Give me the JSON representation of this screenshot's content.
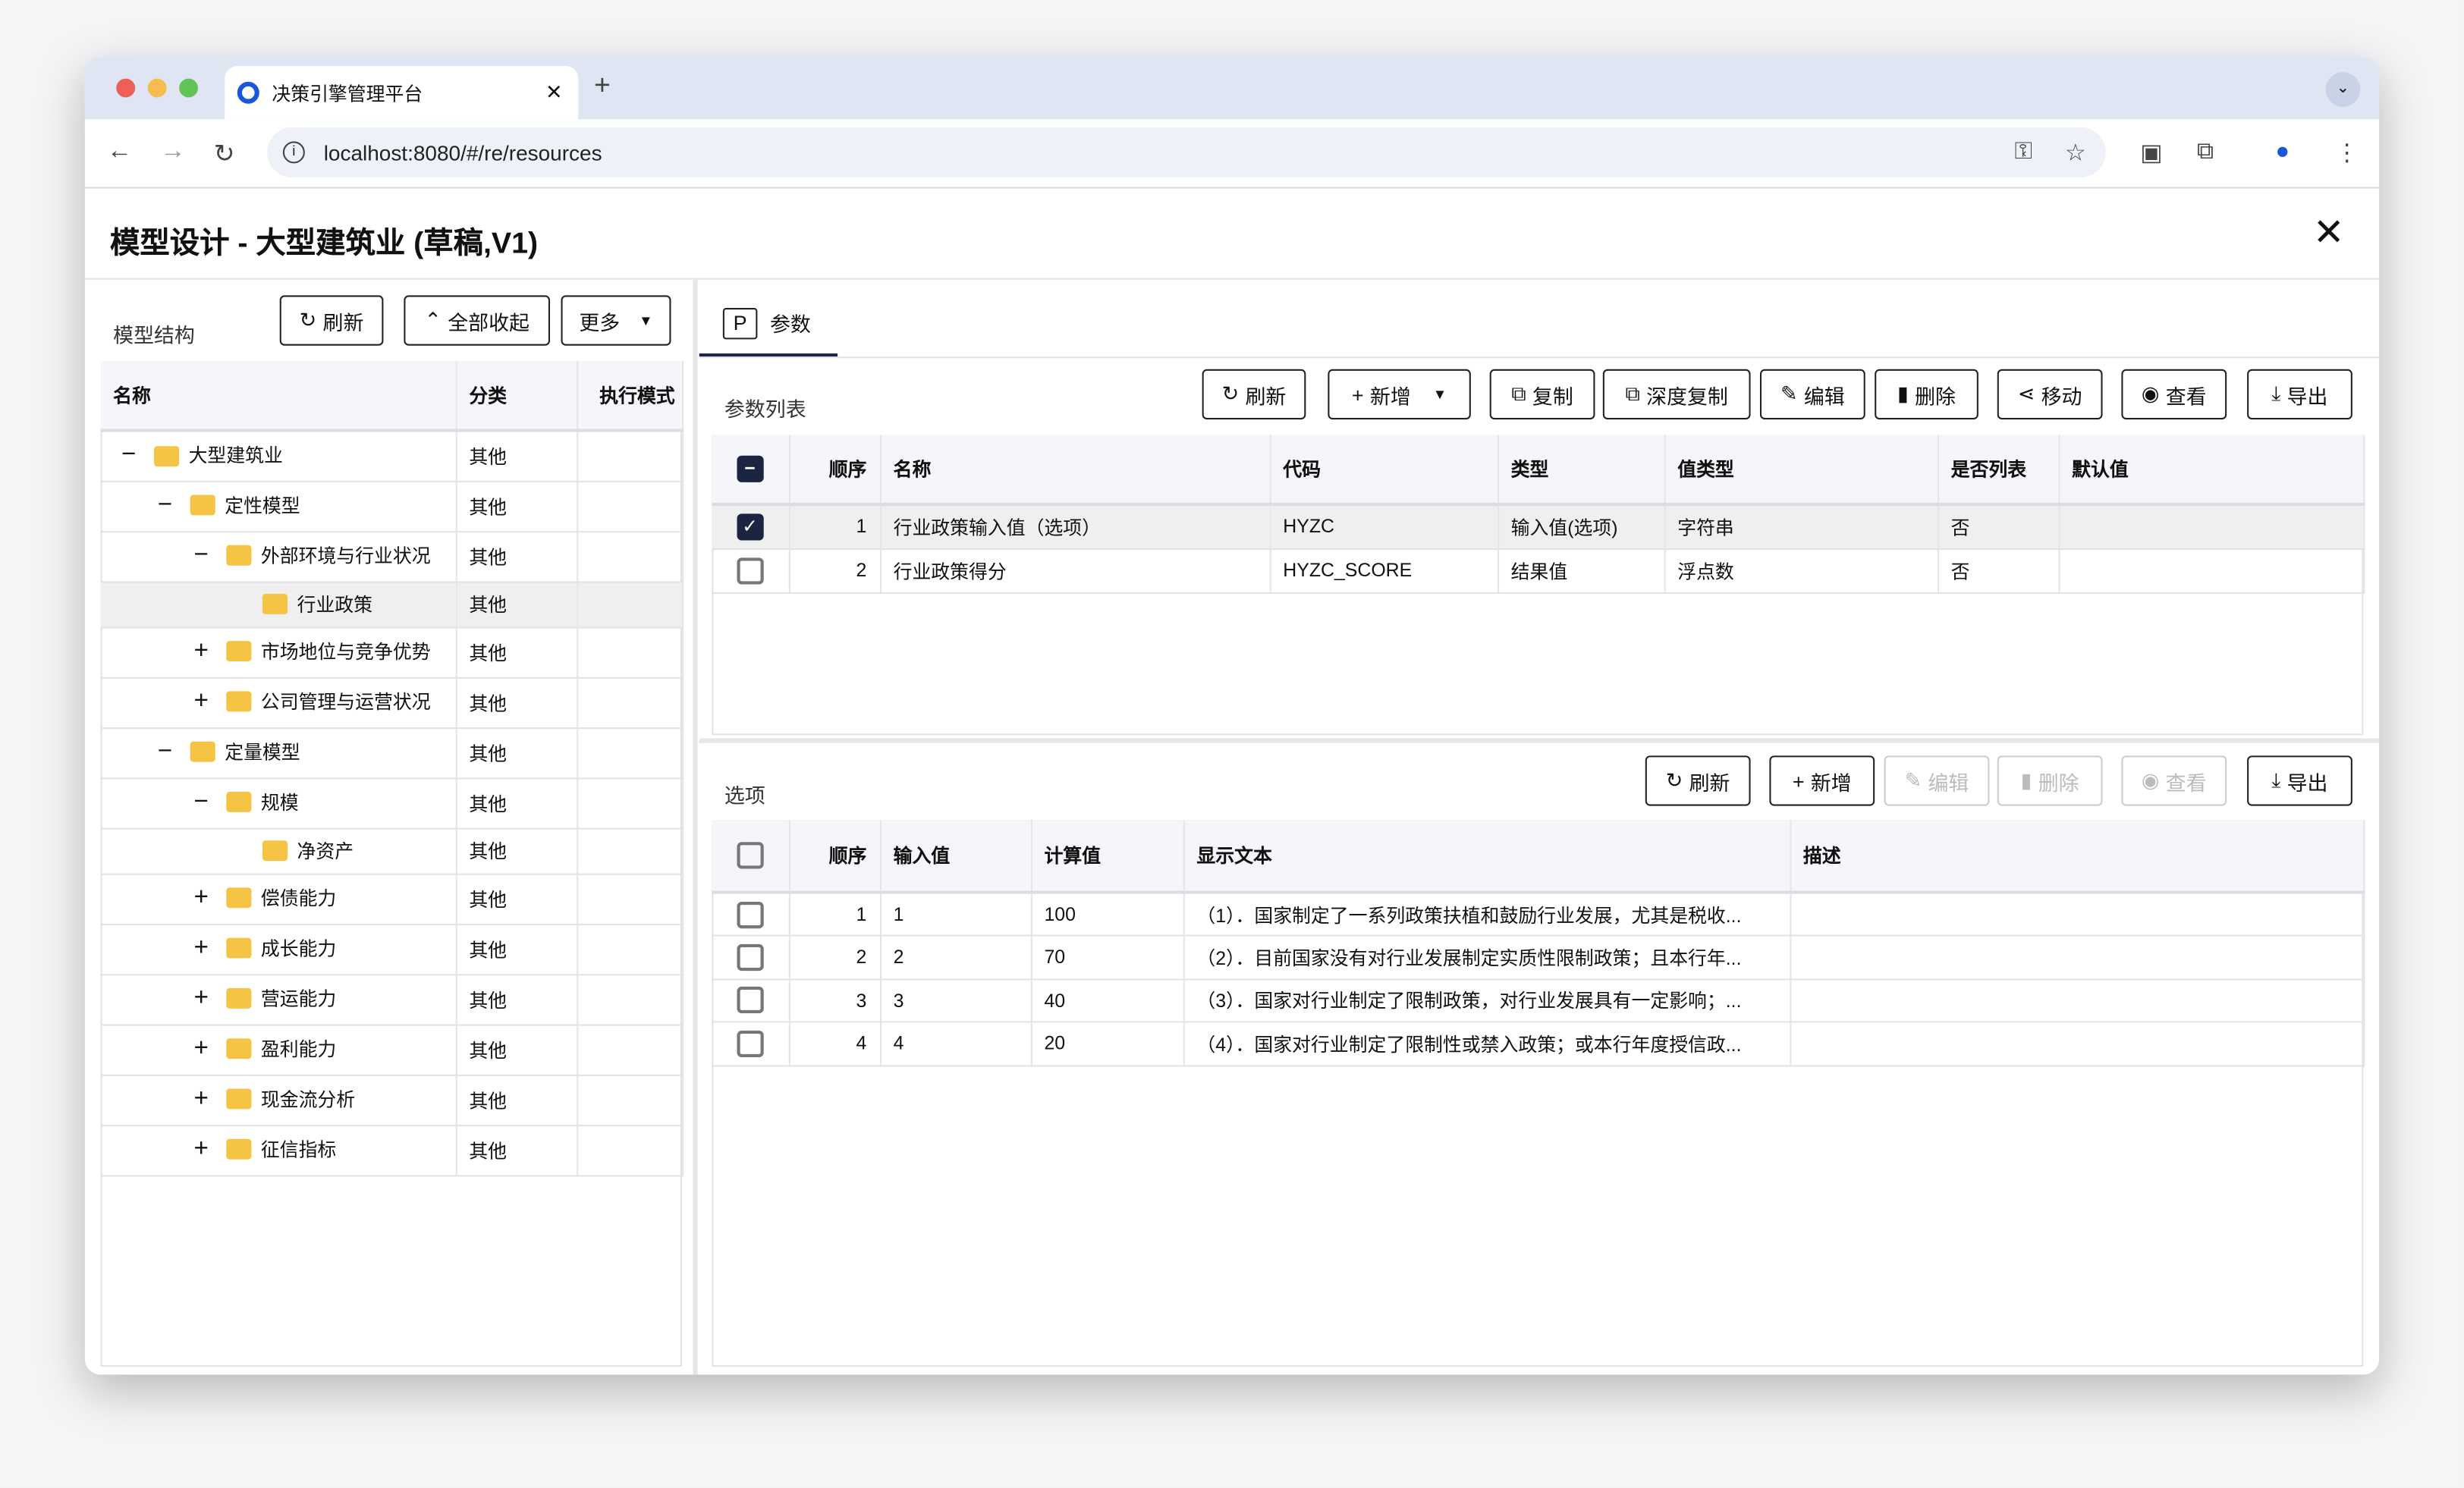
{
  "browser": {
    "tab_title": "决策引擎管理平台",
    "url": "localhost:8080/#/re/resources"
  },
  "dialog": {
    "title": "模型设计 - 大型建筑业 (草稿,V1)"
  },
  "left": {
    "title": "模型结构",
    "refresh": "刷新",
    "collapse_all": "全部收起",
    "more": "更多",
    "columns": [
      "名称",
      "分类",
      "执行模式"
    ],
    "rows": [
      {
        "level": 0,
        "toggle": "−",
        "name": "大型建筑业",
        "category": "其他"
      },
      {
        "level": 1,
        "toggle": "−",
        "name": "定性模型",
        "category": "其他"
      },
      {
        "level": 2,
        "toggle": "−",
        "name": "外部环境与行业状况",
        "category": "其他"
      },
      {
        "level": 3,
        "toggle": "",
        "name": "行业政策",
        "category": "其他",
        "selected": true
      },
      {
        "level": 2,
        "toggle": "+",
        "name": "市场地位与竞争优势",
        "category": "其他"
      },
      {
        "level": 2,
        "toggle": "+",
        "name": "公司管理与运营状况",
        "category": "其他"
      },
      {
        "level": 1,
        "toggle": "−",
        "name": "定量模型",
        "category": "其他"
      },
      {
        "level": 2,
        "toggle": "−",
        "name": "规模",
        "category": "其他"
      },
      {
        "level": 3,
        "toggle": "",
        "name": "净资产",
        "category": "其他"
      },
      {
        "level": 2,
        "toggle": "+",
        "name": "偿债能力",
        "category": "其他"
      },
      {
        "level": 2,
        "toggle": "+",
        "name": "成长能力",
        "category": "其他"
      },
      {
        "level": 2,
        "toggle": "+",
        "name": "营运能力",
        "category": "其他"
      },
      {
        "level": 2,
        "toggle": "+",
        "name": "盈利能力",
        "category": "其他"
      },
      {
        "level": 2,
        "toggle": "+",
        "name": "现金流分析",
        "category": "其他"
      },
      {
        "level": 2,
        "toggle": "+",
        "name": "征信指标",
        "category": "其他"
      }
    ]
  },
  "right": {
    "tab_icon": "P",
    "tab_label": "参数",
    "params": {
      "title": "参数列表",
      "buttons": {
        "refresh": "刷新",
        "add": "新增",
        "copy": "复制",
        "deep_copy": "深度复制",
        "edit": "编辑",
        "delete": "删除",
        "move": "移动",
        "view": "查看",
        "export": "导出"
      },
      "columns": [
        "顺序",
        "名称",
        "代码",
        "类型",
        "值类型",
        "是否列表",
        "默认值"
      ],
      "rows": [
        {
          "checked": true,
          "cells": [
            "1",
            "行业政策输入值（选项）",
            "HYZC",
            "输入值(选项)",
            "字符串",
            "否",
            ""
          ]
        },
        {
          "checked": false,
          "cells": [
            "2",
            "行业政策得分",
            "HYZC_SCORE",
            "结果值",
            "浮点数",
            "否",
            ""
          ]
        }
      ]
    },
    "options": {
      "title": "选项",
      "buttons": {
        "refresh": "刷新",
        "add": "新增",
        "edit": "编辑",
        "delete": "删除",
        "view": "查看",
        "export": "导出"
      },
      "columns": [
        "顺序",
        "输入值",
        "计算值",
        "显示文本",
        "描述"
      ],
      "rows": [
        {
          "cells": [
            "1",
            "1",
            "100",
            "（1）．国家制定了一系列政策扶植和鼓励行业发展，尤其是税收...",
            ""
          ]
        },
        {
          "cells": [
            "2",
            "2",
            "70",
            "（2）．目前国家没有对行业发展制定实质性限制政策；且本行年...",
            ""
          ]
        },
        {
          "cells": [
            "3",
            "3",
            "40",
            "（3）．国家对行业制定了限制政策，对行业发展具有一定影响；...",
            ""
          ]
        },
        {
          "cells": [
            "4",
            "4",
            "20",
            "（4）．国家对行业制定了限制性或禁入政策；或本行年度授信政...",
            ""
          ]
        }
      ]
    }
  },
  "colors": {
    "accent": "#1b2542",
    "folder": "#f6c445",
    "selected_row": "#efefef"
  }
}
